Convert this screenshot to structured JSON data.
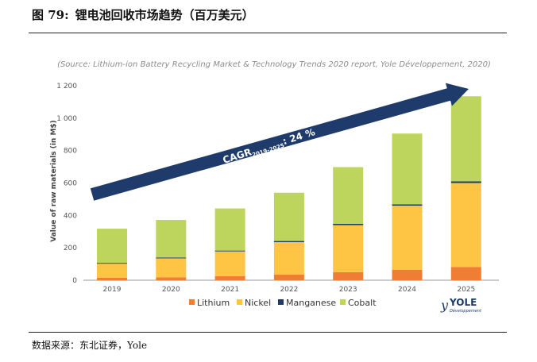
{
  "figure": {
    "label": "图 79:",
    "title": "锂电池回收市场趋势（百万美元）",
    "source_note": "数据来源：东北证券，Yole"
  },
  "chart_data": {
    "type": "bar",
    "stacked": true,
    "subtitle": "(Source: Lithium-ion Battery Recycling Market & Technology Trends 2020 report, Yole Développement, 2020)",
    "ylabel": "Value of raw materials (in M$)",
    "xlabel": "",
    "ylim": [
      0,
      1200
    ],
    "yticks": [
      0,
      200,
      400,
      600,
      800,
      1000,
      1200
    ],
    "ytick_labels": [
      "0",
      "200",
      "400",
      "600",
      "800",
      "1 000",
      "1 200"
    ],
    "grid": false,
    "legend_position": "bottom",
    "categories": [
      "2019",
      "2020",
      "2021",
      "2022",
      "2023",
      "2024",
      "2025"
    ],
    "series": [
      {
        "name": "Lithium",
        "color": "#f07d34",
        "values": [
          15,
          18,
          25,
          35,
          50,
          65,
          82
        ]
      },
      {
        "name": "Nickel",
        "color": "#fdc543",
        "values": [
          87,
          117,
          153,
          200,
          290,
          395,
          518
        ]
      },
      {
        "name": "Manganese",
        "color": "#1f3b6b",
        "values": [
          5,
          5,
          5,
          7,
          8,
          8,
          10
        ]
      },
      {
        "name": "Cobalt",
        "color": "#bdd55c",
        "values": [
          211,
          232,
          260,
          298,
          350,
          437,
          525
        ]
      }
    ],
    "annotation": {
      "prefix": "CAGR",
      "subscript": "2019-2025",
      "suffix": ": 24 %",
      "arrow_color": "#1f3b6b"
    },
    "logo": {
      "main": "YOLE",
      "sub": "Développement"
    }
  }
}
